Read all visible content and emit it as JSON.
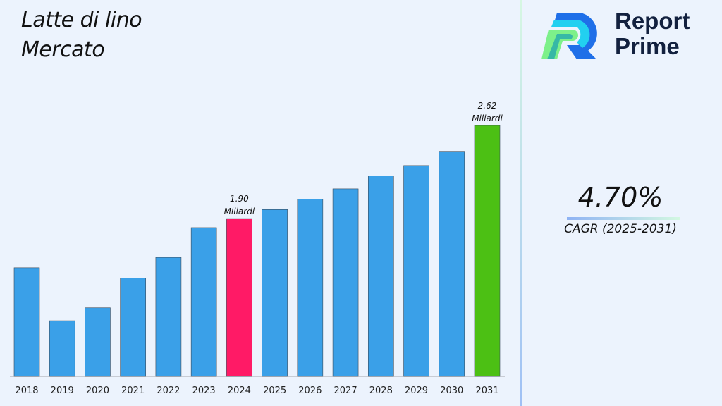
{
  "title_line1": "Latte di lino",
  "title_line2": "Mercato",
  "logo": {
    "line1": "Report",
    "line2": "Prime"
  },
  "cagr": {
    "value": "4.70%",
    "label": "CAGR (2025-2031)"
  },
  "chart_data": {
    "type": "bar",
    "categories": [
      "2018",
      "2019",
      "2020",
      "2021",
      "2022",
      "2023",
      "2024",
      "2025",
      "2026",
      "2027",
      "2028",
      "2029",
      "2030",
      "2031"
    ],
    "values": [
      1.52,
      1.11,
      1.21,
      1.44,
      1.6,
      1.83,
      1.9,
      1.97,
      2.05,
      2.13,
      2.23,
      2.31,
      2.42,
      2.62
    ],
    "ylim": [
      0.68,
      2.62
    ],
    "colors": {
      "default": "#3aa0e8",
      "highlight_2024": "#ff1a66",
      "highlight_2031": "#4cc014"
    },
    "annotations": [
      {
        "category": "2024",
        "value": "1.90",
        "unit": "Miliardi"
      },
      {
        "category": "2031",
        "value": "2.62",
        "unit": "Miliardi"
      }
    ],
    "grid": false
  }
}
